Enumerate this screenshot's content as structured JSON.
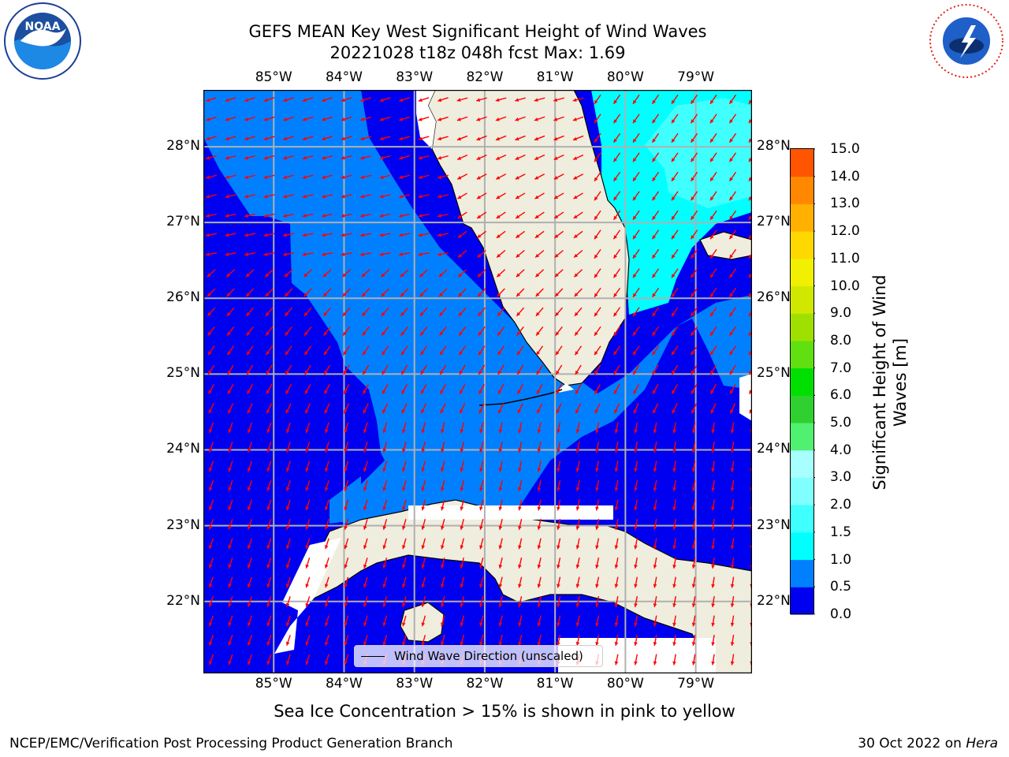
{
  "title_line1": "GEFS MEAN Key West Significant Height of Wind Waves",
  "title_line2": "20221028 t18z 048h fcst   Max: 1.69",
  "lon_ticks": [
    "85°W",
    "84°W",
    "83°W",
    "82°W",
    "81°W",
    "80°W",
    "79°W"
  ],
  "lat_ticks": [
    "28°N",
    "27°N",
    "26°N",
    "25°N",
    "24°N",
    "23°N",
    "22°N"
  ],
  "map": {
    "lon_range": [
      -86.0,
      -78.2
    ],
    "lat_range": [
      21.05,
      28.75
    ],
    "projection": "plate-carree",
    "gridlines": true,
    "colors": {
      "land": "#efedde",
      "coast": "#000000",
      "grid": "#b0b0b0",
      "arrow": "#ff0000",
      "no_data": "#ffffff"
    }
  },
  "colorbar": {
    "levels": [
      0.0,
      0.5,
      1.0,
      1.5,
      2.0,
      3.0,
      4.0,
      5.0,
      6.0,
      7.0,
      8.0,
      9.0,
      10.0,
      11.0,
      12.0,
      13.0,
      14.0,
      15.0
    ],
    "labels": [
      "15.0",
      "14.0",
      "13.0",
      "12.0",
      "11.0",
      "10.0",
      "9.0",
      "8.0",
      "7.0",
      "6.0",
      "5.0",
      "4.0",
      "3.0",
      "2.0",
      "1.5",
      "1.0",
      "0.5",
      "0.0"
    ],
    "colors": [
      "#0000f0",
      "#0080ff",
      "#00ffff",
      "#40ffff",
      "#80ffff",
      "#a8ffff",
      "#50f070",
      "#30d030",
      "#00e000",
      "#60e010",
      "#a0e000",
      "#d0e800",
      "#f0f000",
      "#ffd800",
      "#ffb000",
      "#ff8800",
      "#ff5500",
      "#ff2a00",
      "#ff0000"
    ],
    "label": "Significant Height of Wind Waves [m]",
    "label_line1": "Significant Height of Wind",
    "label_line2": "Waves [m]"
  },
  "legend": {
    "entry": "Wind Wave Direction (unscaled)"
  },
  "footnote": "Sea Ice Concentration > 15% is shown in pink to yellow",
  "credit_left": "NCEP/EMC/Verification Post Processing Product Generation Branch",
  "credit_right_prefix": "30 Oct 2022 on ",
  "credit_right_host": "Hera",
  "logos": {
    "left": "noaa-logo",
    "right": "nws-logo",
    "nws_text": "NATIONAL WEATHER SERVICE"
  }
}
